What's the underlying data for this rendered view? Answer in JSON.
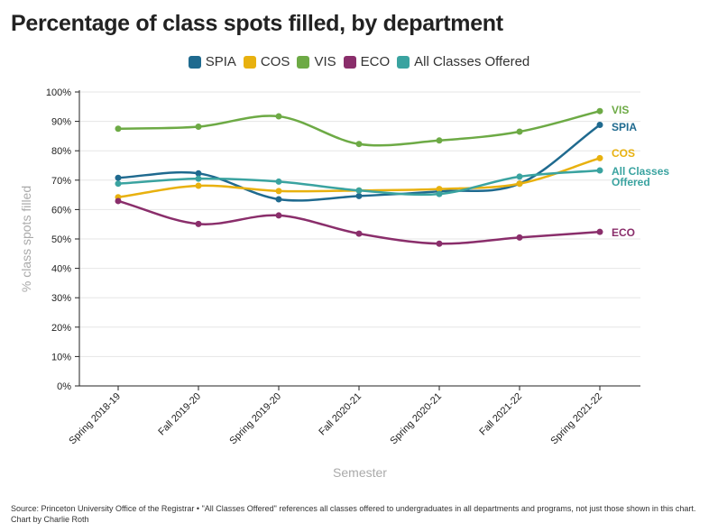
{
  "chart_data": {
    "type": "line",
    "title": "Percentage of class spots filled, by department",
    "xlabel": "Semester",
    "ylabel": "% class spots filled",
    "ylim": [
      0,
      100
    ],
    "yticks": [
      "0%",
      "10%",
      "20%",
      "30%",
      "40%",
      "50%",
      "60%",
      "70%",
      "80%",
      "90%",
      "100%"
    ],
    "grid": true,
    "legend_position": "top",
    "categories": [
      "Spring 2018-19",
      "Fall 2019-20",
      "Spring 2019-20",
      "Fall 2020-21",
      "Spring 2020-21",
      "Fall 2021-22",
      "Spring 2021-22"
    ],
    "series": [
      {
        "name": "SPIA",
        "color": "#1f6a8f",
        "end_label": [
          "SPIA"
        ],
        "values": [
          70.8,
          72.3,
          63.5,
          64.6,
          66.2,
          68.8,
          88.8
        ]
      },
      {
        "name": "COS",
        "color": "#e8b10f",
        "end_label": [
          "COS"
        ],
        "values": [
          64.2,
          68.1,
          66.3,
          66.5,
          67.0,
          68.8,
          77.5
        ]
      },
      {
        "name": "VIS",
        "color": "#6daa45",
        "end_label": [
          "VIS"
        ],
        "values": [
          87.5,
          88.2,
          91.7,
          82.3,
          83.5,
          86.5,
          93.5
        ]
      },
      {
        "name": "ECO",
        "color": "#8a2e6b",
        "end_label": [
          "ECO"
        ],
        "values": [
          62.9,
          55.1,
          58.0,
          51.8,
          48.4,
          50.5,
          52.4
        ]
      },
      {
        "name": "All Classes Offered",
        "color": "#3aa3a0",
        "end_label": [
          "All Classes",
          "Offered"
        ],
        "values": [
          68.8,
          70.5,
          69.5,
          66.5,
          65.3,
          71.2,
          73.3
        ]
      }
    ]
  },
  "source": "Source: Princeton University Office of the Registrar • \"All Classes Offered\" references all classes offered to undergraduates in all departments and programs, not just those shown in this chart.",
  "credit": "Chart by Charlie Roth"
}
